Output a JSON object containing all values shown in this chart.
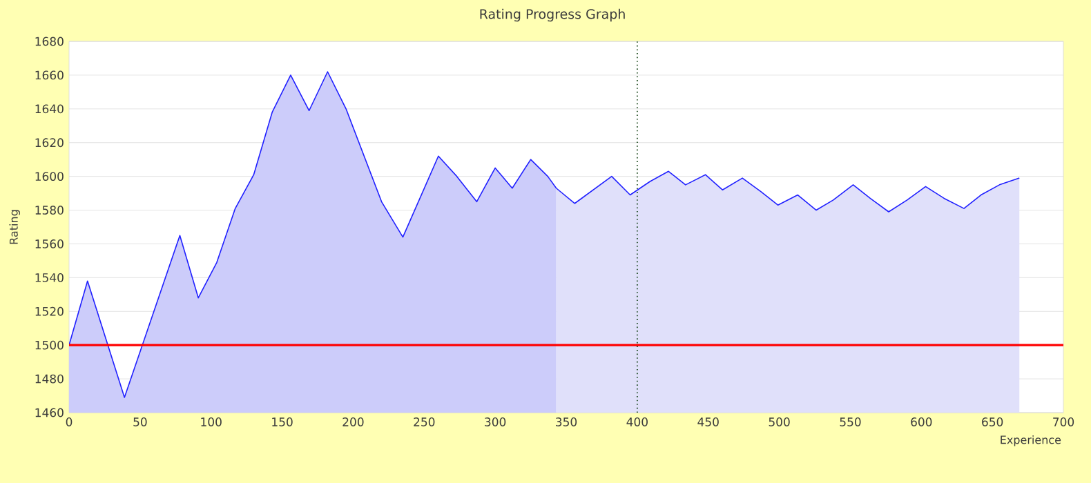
{
  "chart_data": {
    "type": "line",
    "title": "Rating Progress Graph",
    "xlabel": "Experience",
    "ylabel": "Rating",
    "xlim": [
      0,
      700
    ],
    "xticks": [
      0,
      50,
      100,
      150,
      200,
      250,
      300,
      350,
      400,
      450,
      500,
      550,
      600,
      650,
      700
    ],
    "ylim": [
      1460,
      1680
    ],
    "yticks": [
      1460,
      1480,
      1500,
      1520,
      1540,
      1560,
      1580,
      1600,
      1620,
      1640,
      1660,
      1680
    ],
    "grid": "y",
    "marker": "none",
    "line_style": "solid",
    "series": [
      {
        "type": "area",
        "color": "#ccccfa",
        "x": [
          0,
          13,
          39,
          78,
          91,
          104,
          117,
          130,
          143,
          156,
          169,
          182,
          195,
          220,
          235,
          260,
          273,
          287,
          300,
          312,
          325,
          337,
          343
        ],
        "values": [
          1500,
          1538,
          1469,
          1565,
          1528,
          1549,
          1581,
          1601,
          1638,
          1660,
          1639,
          1662,
          1640,
          1585,
          1564,
          1612,
          1600,
          1585,
          1605,
          1593,
          1610,
          1600,
          1593
        ]
      },
      {
        "type": "area",
        "color": "#e0e0fa",
        "x": [
          343,
          356,
          369,
          382,
          395,
          409,
          422,
          434,
          448,
          460,
          474,
          487,
          499,
          513,
          526,
          538,
          552,
          564,
          577,
          590,
          603,
          616,
          630,
          642,
          655,
          669
        ],
        "values": [
          1593,
          1584,
          1592,
          1600,
          1589,
          1597,
          1603,
          1595,
          1601,
          1592,
          1599,
          1591,
          1583,
          1589,
          1580,
          1586,
          1595,
          1587,
          1579,
          1586,
          1594,
          1587,
          1581,
          1589,
          1595,
          1599
        ]
      },
      {
        "color": "#2020ff",
        "x": [
          0,
          13,
          39,
          78,
          91,
          104,
          117,
          130,
          143,
          156,
          169,
          182,
          195,
          220,
          235,
          260,
          273,
          287,
          300,
          312,
          325,
          337,
          343,
          356,
          369,
          382,
          395,
          409,
          422,
          434,
          448,
          460,
          474,
          487,
          499,
          513,
          526,
          538,
          552,
          564,
          577,
          590,
          603,
          616,
          630,
          642,
          655,
          669
        ],
        "values": [
          1500,
          1538,
          1469,
          1565,
          1528,
          1549,
          1581,
          1601,
          1638,
          1660,
          1639,
          1662,
          1640,
          1585,
          1564,
          1612,
          1600,
          1585,
          1605,
          1593,
          1610,
          1600,
          1593,
          1584,
          1592,
          1600,
          1589,
          1597,
          1603,
          1595,
          1601,
          1592,
          1599,
          1591,
          1583,
          1589,
          1580,
          1586,
          1595,
          1587,
          1579,
          1586,
          1594,
          1587,
          1581,
          1589,
          1595,
          1599
        ]
      }
    ],
    "ref_lines": [
      {
        "axis": "y",
        "value": 1500,
        "color": "#ff0000",
        "line_style": "solid"
      },
      {
        "axis": "x",
        "value": 400,
        "color": "#003300",
        "line_style": "dotted"
      }
    ]
  }
}
